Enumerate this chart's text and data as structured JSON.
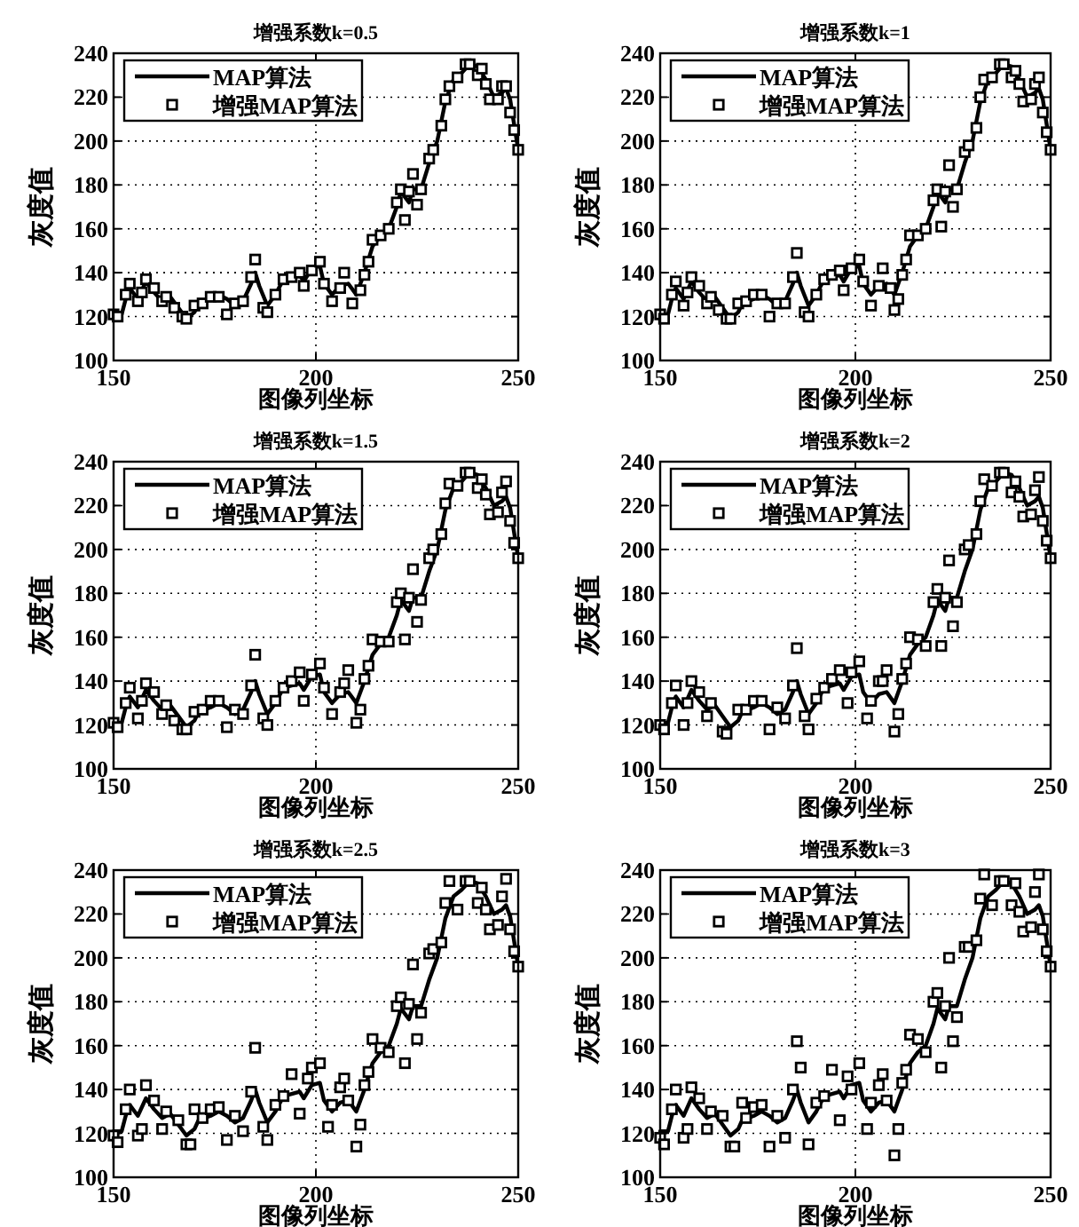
{
  "chart_data": [
    {
      "type": "line",
      "title": "增强系数k=0.5",
      "xlabel": "图像列坐标",
      "ylabel": "灰度值",
      "xlim": [
        150,
        250
      ],
      "ylim": [
        100,
        240
      ],
      "xticks": [
        150,
        200,
        250
      ],
      "yticks": [
        100,
        120,
        140,
        160,
        180,
        200,
        220,
        240
      ],
      "grid": true,
      "legend": "top left",
      "series": [
        {
          "name": "MAP算法",
          "type": "line",
          "color": "#000000",
          "marker": "none",
          "x": [
            150,
            152,
            153,
            154,
            156,
            158,
            160,
            162,
            164,
            166,
            168,
            170,
            171,
            174,
            176,
            178,
            180,
            182,
            184,
            185,
            186,
            188,
            190,
            192,
            194,
            196,
            197,
            199,
            201,
            202,
            204,
            206,
            208,
            210,
            212,
            214,
            216,
            218,
            220,
            221,
            223,
            224,
            226,
            228,
            230,
            232,
            234,
            236,
            238,
            240,
            242,
            244,
            246,
            247,
            248,
            250
          ],
          "values": [
            121,
            121,
            128,
            133,
            128,
            136,
            131,
            127,
            129,
            124,
            119,
            122,
            126,
            128,
            130,
            128,
            125,
            127,
            135,
            140,
            134,
            125,
            130,
            137,
            138,
            139,
            136,
            142,
            143,
            135,
            130,
            134,
            135,
            130,
            140,
            152,
            157,
            160,
            170,
            177,
            172,
            178,
            178,
            190,
            200,
            218,
            228,
            231,
            235,
            234,
            228,
            220,
            222,
            224,
            219,
            196
          ]
        },
        {
          "name": "增强MAP算法",
          "type": "scatter",
          "color": "#000000",
          "marker": "square",
          "x": [
            150,
            151,
            153,
            154,
            156,
            157,
            158,
            160,
            162,
            163,
            165,
            167,
            168,
            170,
            172,
            174,
            176,
            178,
            180,
            182,
            184,
            185,
            187,
            188,
            190,
            192,
            194,
            196,
            197,
            199,
            201,
            202,
            204,
            206,
            207,
            209,
            211,
            212,
            213,
            214,
            216,
            218,
            220,
            221,
            222,
            223,
            224,
            225,
            226,
            228,
            229,
            231,
            232,
            233,
            235,
            237,
            238,
            240,
            241,
            242,
            243,
            245,
            246,
            247,
            248,
            249,
            250
          ],
          "values": [
            121,
            120,
            130,
            135,
            127,
            131,
            137,
            133,
            127,
            129,
            124,
            120,
            119,
            125,
            126,
            129,
            129,
            121,
            126,
            127,
            138,
            146,
            124,
            122,
            130,
            137,
            138,
            140,
            134,
            141,
            145,
            135,
            127,
            133,
            140,
            126,
            132,
            139,
            145,
            155,
            157,
            160,
            172,
            178,
            164,
            177,
            185,
            171,
            178,
            192,
            196,
            207,
            219,
            225,
            229,
            235,
            235,
            230,
            233,
            226,
            219,
            219,
            225,
            225,
            213,
            205,
            196
          ]
        }
      ]
    },
    {
      "type": "line",
      "title": "增强系数k=1",
      "xlabel": "图像列坐标",
      "ylabel": "灰度值",
      "xlim": [
        150,
        250
      ],
      "ylim": [
        100,
        240
      ],
      "xticks": [
        150,
        200,
        250
      ],
      "yticks": [
        100,
        120,
        140,
        160,
        180,
        200,
        220,
        240
      ],
      "grid": true,
      "legend": "top left",
      "series": [
        {
          "name": "MAP算法",
          "type": "line",
          "color": "#000000",
          "marker": "none",
          "x": [
            150,
            152,
            153,
            154,
            156,
            158,
            160,
            162,
            164,
            166,
            168,
            170,
            171,
            174,
            176,
            178,
            180,
            182,
            184,
            185,
            186,
            188,
            190,
            192,
            194,
            196,
            197,
            199,
            201,
            202,
            204,
            206,
            208,
            210,
            212,
            214,
            216,
            218,
            220,
            221,
            223,
            224,
            226,
            228,
            230,
            232,
            234,
            236,
            238,
            240,
            242,
            244,
            246,
            247,
            248,
            250
          ],
          "values": [
            121,
            121,
            128,
            133,
            128,
            136,
            131,
            127,
            129,
            124,
            119,
            122,
            126,
            128,
            130,
            128,
            125,
            127,
            135,
            140,
            134,
            125,
            130,
            137,
            138,
            139,
            136,
            142,
            143,
            135,
            130,
            134,
            135,
            130,
            140,
            152,
            157,
            160,
            170,
            177,
            172,
            178,
            178,
            190,
            200,
            218,
            228,
            231,
            235,
            234,
            228,
            220,
            222,
            224,
            219,
            196
          ]
        },
        {
          "name": "增强MAP算法",
          "type": "scatter",
          "color": "#000000",
          "marker": "square",
          "x": [
            150,
            151,
            153,
            154,
            156,
            157,
            158,
            160,
            162,
            163,
            165,
            167,
            168,
            170,
            172,
            174,
            176,
            178,
            180,
            182,
            184,
            185,
            187,
            188,
            190,
            192,
            194,
            196,
            197,
            199,
            201,
            202,
            204,
            206,
            207,
            209,
            210,
            211,
            212,
            213,
            214,
            216,
            218,
            220,
            221,
            222,
            223,
            224,
            225,
            226,
            228,
            229,
            231,
            232,
            233,
            235,
            237,
            238,
            240,
            241,
            242,
            243,
            245,
            246,
            247,
            248,
            249,
            250
          ],
          "values": [
            121,
            119,
            130,
            136,
            125,
            131,
            138,
            134,
            126,
            129,
            123,
            119,
            119,
            126,
            127,
            130,
            130,
            120,
            126,
            126,
            138,
            149,
            122,
            120,
            130,
            137,
            139,
            141,
            132,
            142,
            146,
            136,
            125,
            134,
            142,
            133,
            123,
            128,
            139,
            146,
            157,
            157,
            160,
            173,
            178,
            161,
            177,
            189,
            170,
            178,
            195,
            198,
            206,
            220,
            228,
            229,
            235,
            235,
            229,
            232,
            226,
            218,
            219,
            226,
            229,
            213,
            204,
            196
          ]
        }
      ]
    },
    {
      "type": "line",
      "title": "增强系数k=1.5",
      "xlabel": "图像列坐标",
      "ylabel": "灰度值",
      "xlim": [
        150,
        250
      ],
      "ylim": [
        100,
        240
      ],
      "xticks": [
        150,
        200,
        250
      ],
      "yticks": [
        100,
        120,
        140,
        160,
        180,
        200,
        220,
        240
      ],
      "grid": true,
      "legend": "top left",
      "series": [
        {
          "name": "MAP算法",
          "type": "line",
          "color": "#000000",
          "marker": "none",
          "x": [
            150,
            152,
            153,
            154,
            156,
            158,
            160,
            162,
            164,
            166,
            168,
            170,
            171,
            174,
            176,
            178,
            180,
            182,
            184,
            185,
            186,
            188,
            190,
            192,
            194,
            196,
            197,
            199,
            201,
            202,
            204,
            206,
            208,
            210,
            212,
            214,
            216,
            218,
            220,
            221,
            223,
            224,
            226,
            228,
            230,
            232,
            234,
            236,
            238,
            240,
            242,
            244,
            246,
            247,
            248,
            250
          ],
          "values": [
            121,
            121,
            128,
            133,
            128,
            136,
            131,
            127,
            129,
            124,
            119,
            122,
            126,
            128,
            130,
            128,
            125,
            127,
            135,
            140,
            134,
            125,
            130,
            137,
            138,
            139,
            136,
            142,
            143,
            135,
            130,
            134,
            135,
            130,
            140,
            152,
            157,
            160,
            170,
            177,
            172,
            178,
            178,
            190,
            200,
            218,
            228,
            231,
            235,
            234,
            228,
            220,
            222,
            224,
            219,
            196
          ]
        },
        {
          "name": "增强MAP算法",
          "type": "scatter",
          "color": "#000000",
          "marker": "square",
          "x": [
            150,
            151,
            153,
            154,
            156,
            157,
            158,
            160,
            162,
            163,
            165,
            167,
            168,
            170,
            172,
            174,
            176,
            178,
            180,
            182,
            184,
            185,
            187,
            188,
            190,
            192,
            194,
            196,
            197,
            199,
            201,
            202,
            204,
            206,
            207,
            208,
            210,
            211,
            212,
            213,
            214,
            216,
            218,
            220,
            221,
            222,
            223,
            224,
            225,
            226,
            228,
            229,
            231,
            232,
            233,
            235,
            237,
            238,
            240,
            241,
            242,
            243,
            245,
            246,
            247,
            248,
            249,
            250
          ],
          "values": [
            121,
            119,
            130,
            137,
            123,
            131,
            139,
            135,
            125,
            129,
            122,
            118,
            118,
            126,
            127,
            131,
            131,
            119,
            127,
            125,
            138,
            152,
            123,
            120,
            131,
            137,
            140,
            144,
            131,
            143,
            148,
            137,
            125,
            135,
            139,
            145,
            121,
            127,
            141,
            147,
            159,
            158,
            158,
            176,
            180,
            159,
            178,
            191,
            167,
            177,
            196,
            200,
            207,
            221,
            230,
            229,
            235,
            235,
            228,
            232,
            225,
            216,
            217,
            226,
            231,
            213,
            203,
            196
          ]
        }
      ]
    },
    {
      "type": "line",
      "title": "增强系数k=2",
      "xlabel": "图像列坐标",
      "ylabel": "灰度值",
      "xlim": [
        150,
        250
      ],
      "ylim": [
        100,
        240
      ],
      "xticks": [
        150,
        200,
        250
      ],
      "yticks": [
        100,
        120,
        140,
        160,
        180,
        200,
        220,
        240
      ],
      "grid": true,
      "legend": "top left",
      "series": [
        {
          "name": "MAP算法",
          "type": "line",
          "color": "#000000",
          "marker": "none",
          "x": [
            150,
            152,
            153,
            154,
            156,
            158,
            160,
            162,
            164,
            166,
            168,
            170,
            171,
            174,
            176,
            178,
            180,
            182,
            184,
            185,
            186,
            188,
            190,
            192,
            194,
            196,
            197,
            199,
            201,
            202,
            204,
            206,
            208,
            210,
            212,
            214,
            216,
            218,
            220,
            221,
            223,
            224,
            226,
            228,
            230,
            232,
            234,
            236,
            238,
            240,
            242,
            244,
            246,
            247,
            248,
            250
          ],
          "values": [
            121,
            121,
            128,
            133,
            128,
            136,
            131,
            127,
            129,
            124,
            119,
            122,
            126,
            128,
            130,
            128,
            125,
            127,
            135,
            140,
            134,
            125,
            130,
            137,
            138,
            139,
            136,
            142,
            143,
            135,
            130,
            134,
            135,
            130,
            140,
            152,
            157,
            160,
            170,
            177,
            172,
            178,
            178,
            190,
            200,
            218,
            228,
            231,
            235,
            234,
            228,
            220,
            222,
            224,
            219,
            196
          ]
        },
        {
          "name": "增强MAP算法",
          "type": "scatter",
          "color": "#000000",
          "marker": "square",
          "x": [
            150,
            151,
            153,
            154,
            156,
            157,
            158,
            160,
            162,
            163,
            166,
            167,
            170,
            172,
            174,
            176,
            178,
            180,
            182,
            184,
            185,
            187,
            188,
            190,
            192,
            194,
            196,
            198,
            199,
            201,
            203,
            204,
            206,
            207,
            208,
            210,
            211,
            212,
            213,
            214,
            216,
            218,
            220,
            221,
            222,
            223,
            224,
            225,
            226,
            228,
            229,
            231,
            232,
            233,
            235,
            237,
            238,
            240,
            241,
            242,
            243,
            245,
            246,
            247,
            248,
            249,
            250
          ],
          "values": [
            120,
            118,
            130,
            138,
            120,
            130,
            140,
            135,
            124,
            130,
            117,
            116,
            127,
            127,
            131,
            131,
            118,
            128,
            123,
            138,
            155,
            124,
            118,
            132,
            137,
            141,
            145,
            130,
            144,
            149,
            123,
            131,
            140,
            140,
            145,
            117,
            125,
            141,
            148,
            160,
            159,
            156,
            176,
            182,
            156,
            178,
            195,
            165,
            176,
            200,
            202,
            207,
            222,
            232,
            229,
            235,
            235,
            226,
            231,
            224,
            215,
            216,
            227,
            233,
            213,
            204,
            196
          ]
        }
      ]
    },
    {
      "type": "line",
      "title": "增强系数k=2.5",
      "xlabel": "图像列坐标",
      "ylabel": "灰度值",
      "xlim": [
        150,
        250
      ],
      "ylim": [
        100,
        240
      ],
      "xticks": [
        150,
        200,
        250
      ],
      "yticks": [
        100,
        120,
        140,
        160,
        180,
        200,
        220,
        240
      ],
      "grid": true,
      "legend": "top left",
      "series": [
        {
          "name": "MAP算法",
          "type": "line",
          "color": "#000000",
          "marker": "none",
          "x": [
            150,
            152,
            153,
            154,
            156,
            158,
            160,
            162,
            164,
            166,
            168,
            170,
            171,
            174,
            176,
            178,
            180,
            182,
            184,
            185,
            186,
            188,
            190,
            192,
            194,
            196,
            197,
            199,
            201,
            202,
            204,
            206,
            208,
            210,
            212,
            214,
            216,
            218,
            220,
            221,
            223,
            224,
            226,
            228,
            230,
            232,
            234,
            236,
            238,
            240,
            242,
            244,
            246,
            247,
            248,
            250
          ],
          "values": [
            121,
            121,
            128,
            133,
            128,
            136,
            131,
            127,
            129,
            124,
            119,
            122,
            126,
            128,
            130,
            128,
            125,
            127,
            135,
            140,
            134,
            125,
            130,
            137,
            138,
            139,
            136,
            142,
            143,
            135,
            130,
            134,
            135,
            130,
            140,
            152,
            157,
            160,
            170,
            177,
            172,
            178,
            178,
            190,
            200,
            218,
            228,
            231,
            235,
            234,
            228,
            220,
            222,
            224,
            219,
            196
          ]
        },
        {
          "name": "增强MAP算法",
          "type": "scatter",
          "color": "#000000",
          "marker": "square",
          "x": [
            150,
            151,
            153,
            154,
            156,
            157,
            158,
            160,
            162,
            163,
            166,
            168,
            169,
            170,
            172,
            174,
            176,
            178,
            180,
            182,
            184,
            185,
            187,
            188,
            190,
            192,
            194,
            196,
            198,
            199,
            201,
            203,
            204,
            206,
            207,
            208,
            210,
            211,
            212,
            213,
            214,
            216,
            218,
            220,
            221,
            222,
            223,
            224,
            225,
            226,
            228,
            229,
            231,
            232,
            233,
            235,
            237,
            238,
            240,
            241,
            242,
            243,
            245,
            246,
            247,
            248,
            249,
            250
          ],
          "values": [
            119,
            116,
            131,
            140,
            119,
            122,
            142,
            135,
            122,
            130,
            126,
            115,
            115,
            131,
            127,
            131,
            132,
            117,
            128,
            121,
            139,
            159,
            123,
            117,
            133,
            137,
            147,
            129,
            145,
            150,
            152,
            123,
            133,
            141,
            145,
            135,
            114,
            124,
            142,
            148,
            163,
            159,
            157,
            178,
            182,
            152,
            179,
            197,
            163,
            175,
            202,
            204,
            207,
            225,
            235,
            222,
            235,
            235,
            225,
            232,
            222,
            213,
            215,
            228,
            236,
            213,
            203,
            196
          ]
        }
      ]
    },
    {
      "type": "line",
      "title": "增强系数k=3",
      "xlabel": "图像列坐标",
      "ylabel": "灰度值",
      "xlim": [
        150,
        250
      ],
      "ylim": [
        100,
        240
      ],
      "xticks": [
        150,
        200,
        250
      ],
      "yticks": [
        100,
        120,
        140,
        160,
        180,
        200,
        220,
        240
      ],
      "grid": true,
      "legend": "top left",
      "series": [
        {
          "name": "MAP算法",
          "type": "line",
          "color": "#000000",
          "marker": "none",
          "x": [
            150,
            152,
            153,
            154,
            156,
            158,
            160,
            162,
            164,
            166,
            168,
            170,
            171,
            174,
            176,
            178,
            180,
            182,
            184,
            185,
            186,
            188,
            190,
            192,
            194,
            196,
            197,
            199,
            201,
            202,
            204,
            206,
            208,
            210,
            212,
            214,
            216,
            218,
            220,
            221,
            223,
            224,
            226,
            228,
            230,
            232,
            234,
            236,
            238,
            240,
            242,
            244,
            246,
            247,
            248,
            250
          ],
          "values": [
            121,
            121,
            128,
            133,
            128,
            136,
            131,
            127,
            129,
            124,
            119,
            122,
            126,
            128,
            130,
            128,
            125,
            127,
            135,
            140,
            134,
            125,
            130,
            137,
            138,
            139,
            136,
            142,
            143,
            135,
            130,
            134,
            135,
            130,
            140,
            152,
            157,
            160,
            170,
            177,
            172,
            178,
            178,
            190,
            200,
            218,
            228,
            231,
            235,
            234,
            228,
            220,
            222,
            224,
            219,
            196
          ]
        },
        {
          "name": "增强MAP算法",
          "type": "scatter",
          "color": "#000000",
          "marker": "square",
          "x": [
            150,
            151,
            153,
            154,
            156,
            157,
            158,
            160,
            162,
            163,
            166,
            168,
            169,
            171,
            172,
            174,
            176,
            178,
            180,
            182,
            184,
            185,
            186,
            188,
            190,
            192,
            194,
            196,
            198,
            199,
            201,
            203,
            204,
            206,
            207,
            208,
            210,
            211,
            212,
            213,
            214,
            216,
            218,
            220,
            221,
            222,
            223,
            224,
            225,
            226,
            228,
            229,
            231,
            232,
            233,
            235,
            237,
            238,
            240,
            241,
            242,
            243,
            245,
            246,
            247,
            248,
            249,
            250
          ],
          "values": [
            118,
            115,
            131,
            140,
            118,
            122,
            141,
            136,
            122,
            130,
            128,
            114,
            114,
            134,
            127,
            132,
            133,
            114,
            128,
            118,
            140,
            162,
            150,
            115,
            134,
            137,
            149,
            126,
            146,
            140,
            152,
            122,
            134,
            142,
            147,
            135,
            110,
            122,
            143,
            149,
            165,
            163,
            157,
            180,
            184,
            150,
            178,
            200,
            162,
            173,
            205,
            205,
            208,
            227,
            238,
            224,
            235,
            235,
            224,
            234,
            221,
            212,
            214,
            230,
            238,
            213,
            203,
            196
          ]
        }
      ]
    }
  ]
}
